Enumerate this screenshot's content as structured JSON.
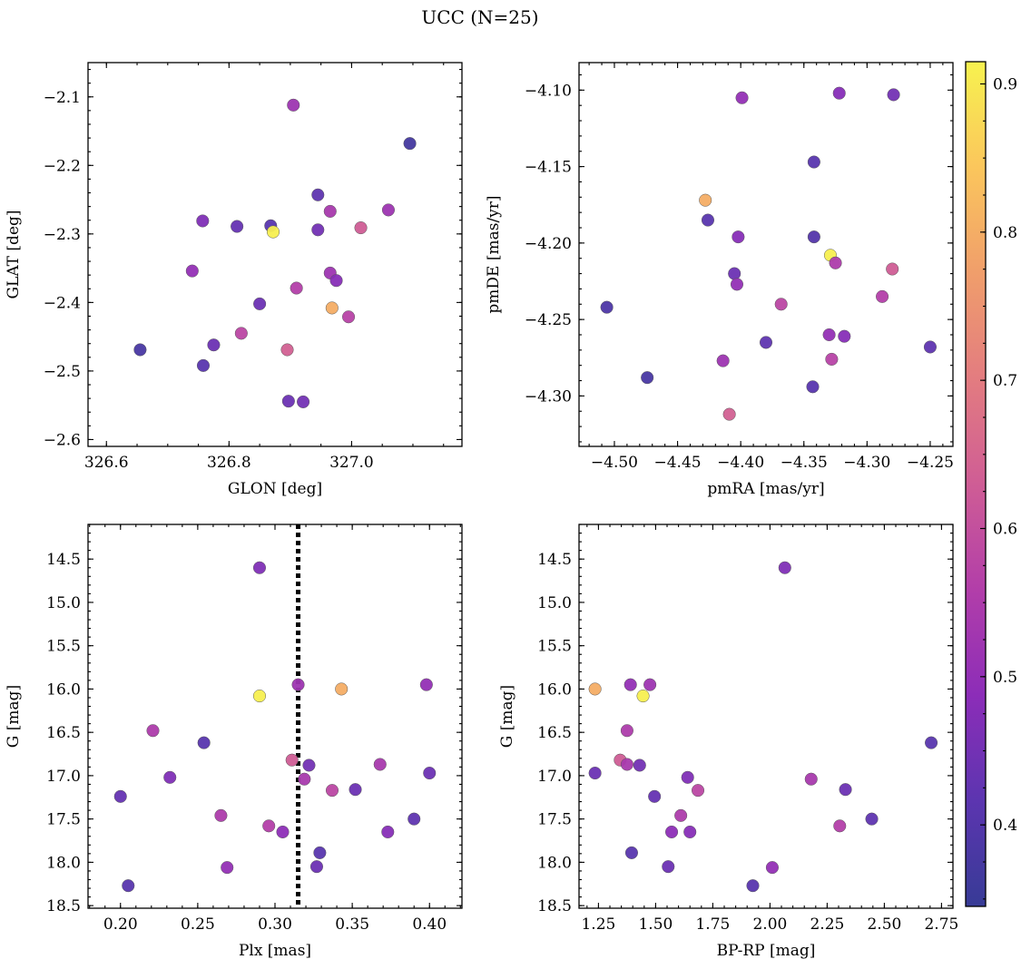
{
  "figure_title": "UCC (N=25)",
  "colorbar": {
    "min": 0.345,
    "max": 0.915,
    "ticks": [
      0.4,
      0.5,
      0.6,
      0.7,
      0.8,
      0.9
    ],
    "tick_labels": [
      "0.4",
      "0.5",
      "0.6",
      "0.7",
      "0.8",
      "0.9"
    ],
    "colormap": "plasma",
    "stops": [
      "#373b96",
      "#5c35b0",
      "#8c2db8",
      "#b23ea9",
      "#cf5d95",
      "#e37c80",
      "#f09e6b",
      "#fbc65c",
      "#f7f24f"
    ]
  },
  "chart_data": [
    {
      "type": "scatter",
      "id": "glon_glat",
      "title": "",
      "xlabel": "GLON [deg]",
      "ylabel": "GLAT [deg]",
      "xlim": [
        326.57,
        327.18
      ],
      "ylim": [
        -2.61,
        -2.05
      ],
      "y_inverted": false,
      "xticks": [
        326.6,
        326.8,
        327.0
      ],
      "xtick_labels": [
        "326.6",
        "326.8",
        "327.0"
      ],
      "xminor": 0.05,
      "yticks": [
        -2.6,
        -2.5,
        -2.4,
        -2.3,
        -2.2,
        -2.1
      ],
      "ytick_labels": [
        "−2.6",
        "−2.5",
        "−2.4",
        "−2.3",
        "−2.2",
        "−2.1"
      ],
      "yminor": 0.02,
      "points": [
        {
          "x": 326.905,
          "y": -2.112,
          "c": 0.52
        },
        {
          "x": 327.095,
          "y": -2.168,
          "c": 0.37
        },
        {
          "x": 326.945,
          "y": -2.243,
          "c": 0.42
        },
        {
          "x": 326.757,
          "y": -2.281,
          "c": 0.47
        },
        {
          "x": 326.813,
          "y": -2.289,
          "c": 0.43
        },
        {
          "x": 326.868,
          "y": -2.288,
          "c": 0.41
        },
        {
          "x": 326.872,
          "y": -2.297,
          "c": 0.91
        },
        {
          "x": 326.945,
          "y": -2.294,
          "c": 0.45
        },
        {
          "x": 326.965,
          "y": -2.267,
          "c": 0.54
        },
        {
          "x": 327.06,
          "y": -2.265,
          "c": 0.52
        },
        {
          "x": 327.015,
          "y": -2.291,
          "c": 0.63
        },
        {
          "x": 326.74,
          "y": -2.354,
          "c": 0.5
        },
        {
          "x": 326.965,
          "y": -2.357,
          "c": 0.52
        },
        {
          "x": 326.975,
          "y": -2.368,
          "c": 0.48
        },
        {
          "x": 326.91,
          "y": -2.379,
          "c": 0.56
        },
        {
          "x": 326.85,
          "y": -2.402,
          "c": 0.44
        },
        {
          "x": 326.968,
          "y": -2.408,
          "c": 0.8
        },
        {
          "x": 326.995,
          "y": -2.421,
          "c": 0.57
        },
        {
          "x": 326.82,
          "y": -2.445,
          "c": 0.58
        },
        {
          "x": 326.775,
          "y": -2.462,
          "c": 0.44
        },
        {
          "x": 326.655,
          "y": -2.469,
          "c": 0.38
        },
        {
          "x": 326.895,
          "y": -2.469,
          "c": 0.64
        },
        {
          "x": 326.758,
          "y": -2.492,
          "c": 0.41
        },
        {
          "x": 326.897,
          "y": -2.544,
          "c": 0.44
        },
        {
          "x": 326.921,
          "y": -2.545,
          "c": 0.45
        }
      ]
    },
    {
      "type": "scatter",
      "id": "pmra_pmde",
      "title": "",
      "xlabel": "pmRA [mas/yr]",
      "ylabel": "pmDE [mas/yr]",
      "xlim": [
        -4.528,
        -4.232
      ],
      "ylim": [
        -4.333,
        -4.082
      ],
      "y_inverted": false,
      "xticks": [
        -4.5,
        -4.45,
        -4.4,
        -4.35,
        -4.3,
        -4.25
      ],
      "xtick_labels": [
        "−4.50",
        "−4.45",
        "−4.40",
        "−4.35",
        "−4.30",
        "−4.25"
      ],
      "xminor": 0.01,
      "yticks": [
        -4.3,
        -4.25,
        -4.2,
        -4.15,
        -4.1
      ],
      "ytick_labels": [
        "−4.30",
        "−4.25",
        "−4.20",
        "−4.15",
        "−4.10"
      ],
      "yminor": 0.01,
      "points": [
        {
          "x": -4.399,
          "y": -4.105,
          "c": 0.5
        },
        {
          "x": -4.322,
          "y": -4.102,
          "c": 0.48
        },
        {
          "x": -4.279,
          "y": -4.103,
          "c": 0.45
        },
        {
          "x": -4.342,
          "y": -4.147,
          "c": 0.41
        },
        {
          "x": -4.428,
          "y": -4.172,
          "c": 0.8
        },
        {
          "x": -4.426,
          "y": -4.185,
          "c": 0.41
        },
        {
          "x": -4.402,
          "y": -4.196,
          "c": 0.48
        },
        {
          "x": -4.342,
          "y": -4.196,
          "c": 0.4
        },
        {
          "x": -4.329,
          "y": -4.208,
          "c": 0.91
        },
        {
          "x": -4.325,
          "y": -4.213,
          "c": 0.55
        },
        {
          "x": -4.28,
          "y": -4.217,
          "c": 0.63
        },
        {
          "x": -4.405,
          "y": -4.22,
          "c": 0.44
        },
        {
          "x": -4.403,
          "y": -4.227,
          "c": 0.5
        },
        {
          "x": -4.288,
          "y": -4.235,
          "c": 0.56
        },
        {
          "x": -4.368,
          "y": -4.24,
          "c": 0.58
        },
        {
          "x": -4.506,
          "y": -4.242,
          "c": 0.39
        },
        {
          "x": -4.33,
          "y": -4.26,
          "c": 0.5
        },
        {
          "x": -4.318,
          "y": -4.261,
          "c": 0.48
        },
        {
          "x": -4.38,
          "y": -4.265,
          "c": 0.42
        },
        {
          "x": -4.25,
          "y": -4.268,
          "c": 0.42
        },
        {
          "x": -4.328,
          "y": -4.276,
          "c": 0.57
        },
        {
          "x": -4.414,
          "y": -4.277,
          "c": 0.52
        },
        {
          "x": -4.474,
          "y": -4.288,
          "c": 0.38
        },
        {
          "x": -4.343,
          "y": -4.294,
          "c": 0.41
        },
        {
          "x": -4.409,
          "y": -4.312,
          "c": 0.64
        }
      ]
    },
    {
      "type": "scatter",
      "id": "plx_g",
      "title": "",
      "xlabel": "Plx [mas]",
      "ylabel": "G [mag]",
      "xlim": [
        0.179,
        0.421
      ],
      "ylim": [
        14.1,
        18.53
      ],
      "y_inverted": true,
      "xticks": [
        0.2,
        0.25,
        0.3,
        0.35,
        0.4
      ],
      "xtick_labels": [
        "0.20",
        "0.25",
        "0.30",
        "0.35",
        "0.40"
      ],
      "xminor": 0.01,
      "yticks": [
        14.5,
        15.0,
        15.5,
        16.0,
        16.5,
        17.0,
        17.5,
        18.0,
        18.5
      ],
      "ytick_labels": [
        "14.5",
        "15.0",
        "15.5",
        "16.0",
        "16.5",
        "17.0",
        "17.5",
        "18.0",
        "18.5"
      ],
      "yminor": 0.1,
      "vline": {
        "x": 0.315,
        "style": "dotted"
      },
      "points": [
        {
          "x": 0.29,
          "y": 14.6,
          "c": 0.47
        },
        {
          "x": 0.315,
          "y": 15.95,
          "c": 0.52
        },
        {
          "x": 0.398,
          "y": 15.95,
          "c": 0.5
        },
        {
          "x": 0.343,
          "y": 16.0,
          "c": 0.8
        },
        {
          "x": 0.29,
          "y": 16.08,
          "c": 0.91
        },
        {
          "x": 0.221,
          "y": 16.48,
          "c": 0.55
        },
        {
          "x": 0.254,
          "y": 16.62,
          "c": 0.41
        },
        {
          "x": 0.311,
          "y": 16.82,
          "c": 0.63
        },
        {
          "x": 0.322,
          "y": 16.88,
          "c": 0.45
        },
        {
          "x": 0.368,
          "y": 16.87,
          "c": 0.54
        },
        {
          "x": 0.4,
          "y": 16.97,
          "c": 0.44
        },
        {
          "x": 0.232,
          "y": 17.02,
          "c": 0.47
        },
        {
          "x": 0.319,
          "y": 17.04,
          "c": 0.54
        },
        {
          "x": 0.337,
          "y": 17.17,
          "c": 0.58
        },
        {
          "x": 0.352,
          "y": 17.16,
          "c": 0.44
        },
        {
          "x": 0.2,
          "y": 17.24,
          "c": 0.43
        },
        {
          "x": 0.265,
          "y": 17.46,
          "c": 0.55
        },
        {
          "x": 0.39,
          "y": 17.5,
          "c": 0.42
        },
        {
          "x": 0.296,
          "y": 17.58,
          "c": 0.56
        },
        {
          "x": 0.305,
          "y": 17.65,
          "c": 0.49
        },
        {
          "x": 0.373,
          "y": 17.65,
          "c": 0.48
        },
        {
          "x": 0.329,
          "y": 17.89,
          "c": 0.41
        },
        {
          "x": 0.327,
          "y": 18.05,
          "c": 0.44
        },
        {
          "x": 0.269,
          "y": 18.06,
          "c": 0.5
        },
        {
          "x": 0.205,
          "y": 18.27,
          "c": 0.41
        }
      ]
    },
    {
      "type": "scatter",
      "id": "bprp_g",
      "title": "",
      "xlabel": "BP-RP [mag]",
      "ylabel": "G [mag]",
      "xlim": [
        1.165,
        2.8
      ],
      "ylim": [
        14.1,
        18.53
      ],
      "y_inverted": true,
      "xticks": [
        1.25,
        1.5,
        1.75,
        2.0,
        2.25,
        2.5,
        2.75
      ],
      "xtick_labels": [
        "1.25",
        "1.50",
        "1.75",
        "2.00",
        "2.25",
        "2.50",
        "2.75"
      ],
      "xminor": 0.05,
      "yticks": [
        14.5,
        15.0,
        15.5,
        16.0,
        16.5,
        17.0,
        17.5,
        18.0,
        18.5
      ],
      "ytick_labels": [
        "14.5",
        "15.0",
        "15.5",
        "16.0",
        "16.5",
        "17.0",
        "17.5",
        "18.0",
        "18.5"
      ],
      "yminor": 0.1,
      "points": [
        {
          "x": 2.065,
          "y": 14.6,
          "c": 0.47
        },
        {
          "x": 1.39,
          "y": 15.95,
          "c": 0.5
        },
        {
          "x": 1.475,
          "y": 15.95,
          "c": 0.52
        },
        {
          "x": 1.235,
          "y": 16.0,
          "c": 0.8
        },
        {
          "x": 1.445,
          "y": 16.08,
          "c": 0.91
        },
        {
          "x": 1.375,
          "y": 16.48,
          "c": 0.55
        },
        {
          "x": 2.705,
          "y": 16.62,
          "c": 0.41
        },
        {
          "x": 1.345,
          "y": 16.82,
          "c": 0.63
        },
        {
          "x": 1.375,
          "y": 16.87,
          "c": 0.54
        },
        {
          "x": 1.43,
          "y": 16.88,
          "c": 0.45
        },
        {
          "x": 1.235,
          "y": 16.97,
          "c": 0.44
        },
        {
          "x": 1.64,
          "y": 17.02,
          "c": 0.47
        },
        {
          "x": 2.18,
          "y": 17.04,
          "c": 0.54
        },
        {
          "x": 1.685,
          "y": 17.17,
          "c": 0.58
        },
        {
          "x": 2.33,
          "y": 17.16,
          "c": 0.44
        },
        {
          "x": 1.495,
          "y": 17.24,
          "c": 0.43
        },
        {
          "x": 1.61,
          "y": 17.46,
          "c": 0.55
        },
        {
          "x": 2.445,
          "y": 17.5,
          "c": 0.42
        },
        {
          "x": 2.305,
          "y": 17.58,
          "c": 0.56
        },
        {
          "x": 1.57,
          "y": 17.65,
          "c": 0.49
        },
        {
          "x": 1.65,
          "y": 17.65,
          "c": 0.48
        },
        {
          "x": 1.395,
          "y": 17.89,
          "c": 0.41
        },
        {
          "x": 1.555,
          "y": 18.05,
          "c": 0.44
        },
        {
          "x": 2.01,
          "y": 18.06,
          "c": 0.5
        },
        {
          "x": 1.925,
          "y": 18.27,
          "c": 0.41
        }
      ]
    }
  ]
}
